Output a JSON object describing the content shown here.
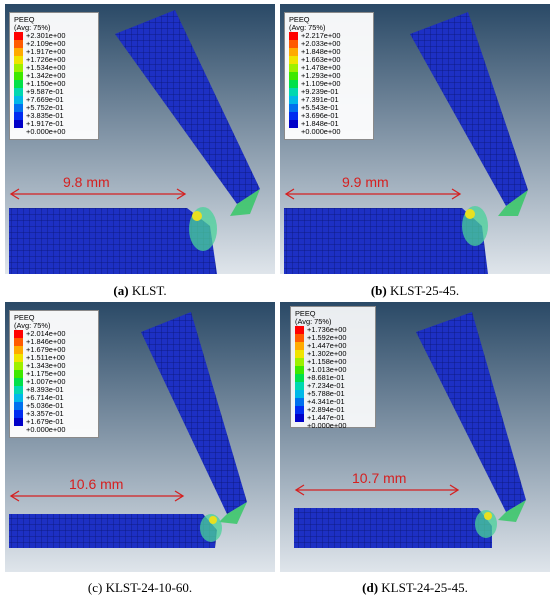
{
  "legend_header_1": "PEEQ",
  "legend_header_2": "(Avg: 75%)",
  "legend_colors": [
    "#ff0000",
    "#ff5a00",
    "#ffaa00",
    "#f0e400",
    "#9ef000",
    "#3ee800",
    "#00e04a",
    "#00d8b0",
    "#00b8e8",
    "#0070ee",
    "#002cf0",
    "#0000c8"
  ],
  "panels": [
    {
      "id": "a",
      "distance": "9.8 mm",
      "caption_letter": "(a)",
      "caption_text": " KLST.",
      "legend": [
        "+2.301e+00",
        "+2.109e+00",
        "+1.917e+00",
        "+1.726e+00",
        "+1.534e+00",
        "+1.342e+00",
        "+1.150e+00",
        "+9.587e-01",
        "+7.669e-01",
        "+5.752e-01",
        "+3.835e-01",
        "+1.917e-01",
        "+0.000e+00"
      ]
    },
    {
      "id": "b",
      "distance": "9.9 mm",
      "caption_letter": "(b)",
      "caption_text": " KLST-25-45.",
      "legend": [
        "+2.217e+00",
        "+2.033e+00",
        "+1.848e+00",
        "+1.663e+00",
        "+1.478e+00",
        "+1.293e+00",
        "+1.109e+00",
        "+9.239e-01",
        "+7.391e-01",
        "+5.543e-01",
        "+3.696e-01",
        "+1.848e-01",
        "+0.000e+00"
      ]
    },
    {
      "id": "c",
      "distance": "10.6 mm",
      "caption_letter": "(c)",
      "caption_text": " KLST-24-10-60.",
      "legend": [
        "+2.014e+00",
        "+1.846e+00",
        "+1.679e+00",
        "+1.511e+00",
        "+1.343e+00",
        "+1.175e+00",
        "+1.007e+00",
        "+8.393e-01",
        "+6.714e-01",
        "+5.036e-01",
        "+3.357e-01",
        "+1.679e-01",
        "+0.000e+00"
      ]
    },
    {
      "id": "d",
      "distance": "10.7 mm",
      "caption_letter": "(d)",
      "caption_text": " KLST-24-25-45.",
      "legend": [
        "+1.736e+00",
        "+1.592e+00",
        "+1.447e+00",
        "+1.302e+00",
        "+1.158e+00",
        "+1.013e+00",
        "+8.681e-01",
        "+7.234e-01",
        "+5.788e-01",
        "+4.341e-01",
        "+2.894e-01",
        "+1.447e-01",
        "+0.000e+00"
      ]
    }
  ]
}
